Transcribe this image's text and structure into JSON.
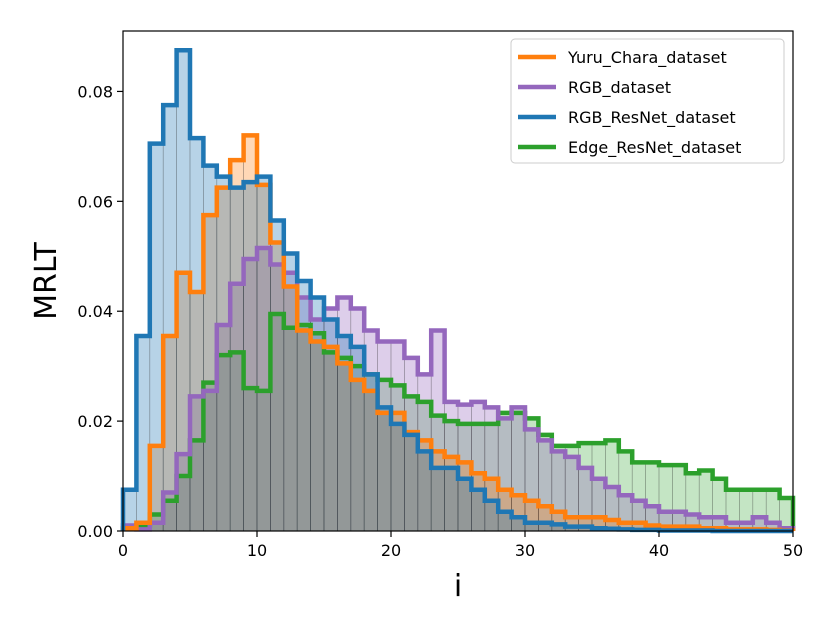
{
  "chart_data": {
    "type": "histogram",
    "xlabel": "i",
    "ylabel": "MRLT",
    "xlim": [
      0,
      50
    ],
    "ylim": [
      0,
      0.091
    ],
    "x_ticks": [
      "0",
      "10",
      "20",
      "30",
      "40",
      "50"
    ],
    "y_ticks": [
      "0.00",
      "0.02",
      "0.04",
      "0.06",
      "0.08"
    ],
    "grid": false,
    "legend_position": "top-right",
    "bin_edges": [
      0,
      1,
      2,
      3,
      4,
      5,
      6,
      7,
      8,
      9,
      10,
      11,
      12,
      13,
      14,
      15,
      16,
      17,
      18,
      19,
      20,
      21,
      22,
      23,
      24,
      25,
      26,
      27,
      28,
      29,
      30,
      31,
      32,
      33,
      34,
      35,
      36,
      37,
      38,
      39,
      40,
      41,
      42,
      43,
      44,
      45,
      46,
      47,
      48,
      49,
      50
    ],
    "series": [
      {
        "name": "Edge_ResNet_dataset",
        "color": "#2ca02c",
        "fill": "rgba(44,160,44,0.28)",
        "values": [
          0.0004,
          0.001,
          0.003,
          0.0055,
          0.01,
          0.0165,
          0.027,
          0.032,
          0.0325,
          0.026,
          0.0255,
          0.0395,
          0.037,
          0.0375,
          0.036,
          0.0325,
          0.0315,
          0.03,
          0.0285,
          0.0275,
          0.0265,
          0.0245,
          0.0235,
          0.021,
          0.02,
          0.0195,
          0.0195,
          0.0195,
          0.0215,
          0.0215,
          0.0205,
          0.0175,
          0.0155,
          0.0155,
          0.016,
          0.016,
          0.0165,
          0.0145,
          0.0125,
          0.0125,
          0.012,
          0.012,
          0.0105,
          0.011,
          0.0095,
          0.0075,
          0.0075,
          0.0075,
          0.0075,
          0.006
        ]
      },
      {
        "name": "RGB_dataset",
        "color": "#9467bd",
        "fill": "rgba(148,103,189,0.32)",
        "values": [
          0.001,
          0.0003,
          0.0015,
          0.007,
          0.014,
          0.0245,
          0.0255,
          0.0375,
          0.045,
          0.0495,
          0.0515,
          0.0485,
          0.047,
          0.0425,
          0.0385,
          0.0405,
          0.0425,
          0.0405,
          0.0365,
          0.0345,
          0.0345,
          0.0315,
          0.0285,
          0.0365,
          0.0235,
          0.023,
          0.0235,
          0.0225,
          0.0205,
          0.0225,
          0.0185,
          0.0165,
          0.0145,
          0.0135,
          0.0115,
          0.0095,
          0.008,
          0.0065,
          0.0055,
          0.0045,
          0.0035,
          0.0035,
          0.003,
          0.0025,
          0.0025,
          0.0015,
          0.0015,
          0.0025,
          0.0015,
          0.0005
        ]
      },
      {
        "name": "Yuru_Chara_dataset",
        "color": "#ff7f0e",
        "fill": "rgba(255,127,14,0.30)",
        "values": [
          0.0005,
          0.0015,
          0.0155,
          0.0355,
          0.047,
          0.0435,
          0.0575,
          0.0625,
          0.0675,
          0.072,
          0.063,
          0.0525,
          0.0445,
          0.0365,
          0.0345,
          0.0335,
          0.0305,
          0.0275,
          0.0255,
          0.0215,
          0.0215,
          0.018,
          0.0165,
          0.0145,
          0.0135,
          0.0125,
          0.0105,
          0.0095,
          0.0075,
          0.0065,
          0.0055,
          0.0045,
          0.0035,
          0.0025,
          0.0025,
          0.0025,
          0.002,
          0.0015,
          0.0015,
          0.001,
          0.0008,
          0.0008,
          0.0008,
          0.0005,
          0.0005,
          0.0003,
          0.0003,
          0.0003,
          0.0002,
          0.0001
        ]
      },
      {
        "name": "RGB_ResNet_dataset",
        "color": "#1f77b4",
        "fill": "rgba(31,119,180,0.32)",
        "values": [
          0.0075,
          0.0355,
          0.0705,
          0.0775,
          0.0875,
          0.0715,
          0.0665,
          0.0645,
          0.0625,
          0.0635,
          0.0645,
          0.0565,
          0.0505,
          0.0455,
          0.0425,
          0.0385,
          0.0355,
          0.0335,
          0.0285,
          0.0225,
          0.0195,
          0.0175,
          0.0145,
          0.0115,
          0.0115,
          0.0095,
          0.0075,
          0.0055,
          0.0035,
          0.0025,
          0.0015,
          0.0015,
          0.0012,
          0.0008,
          0.0008,
          0.0005,
          0.0004,
          0.0003,
          0.0002,
          0.0002,
          0.0001,
          0.0001,
          0.0001,
          0.0001,
          0.0,
          0.0,
          0.0,
          0.0,
          0.0,
          0.0
        ]
      }
    ],
    "legend_order": [
      "Yuru_Chara_dataset",
      "RGB_dataset",
      "RGB_ResNet_dataset",
      "Edge_ResNet_dataset"
    ]
  }
}
